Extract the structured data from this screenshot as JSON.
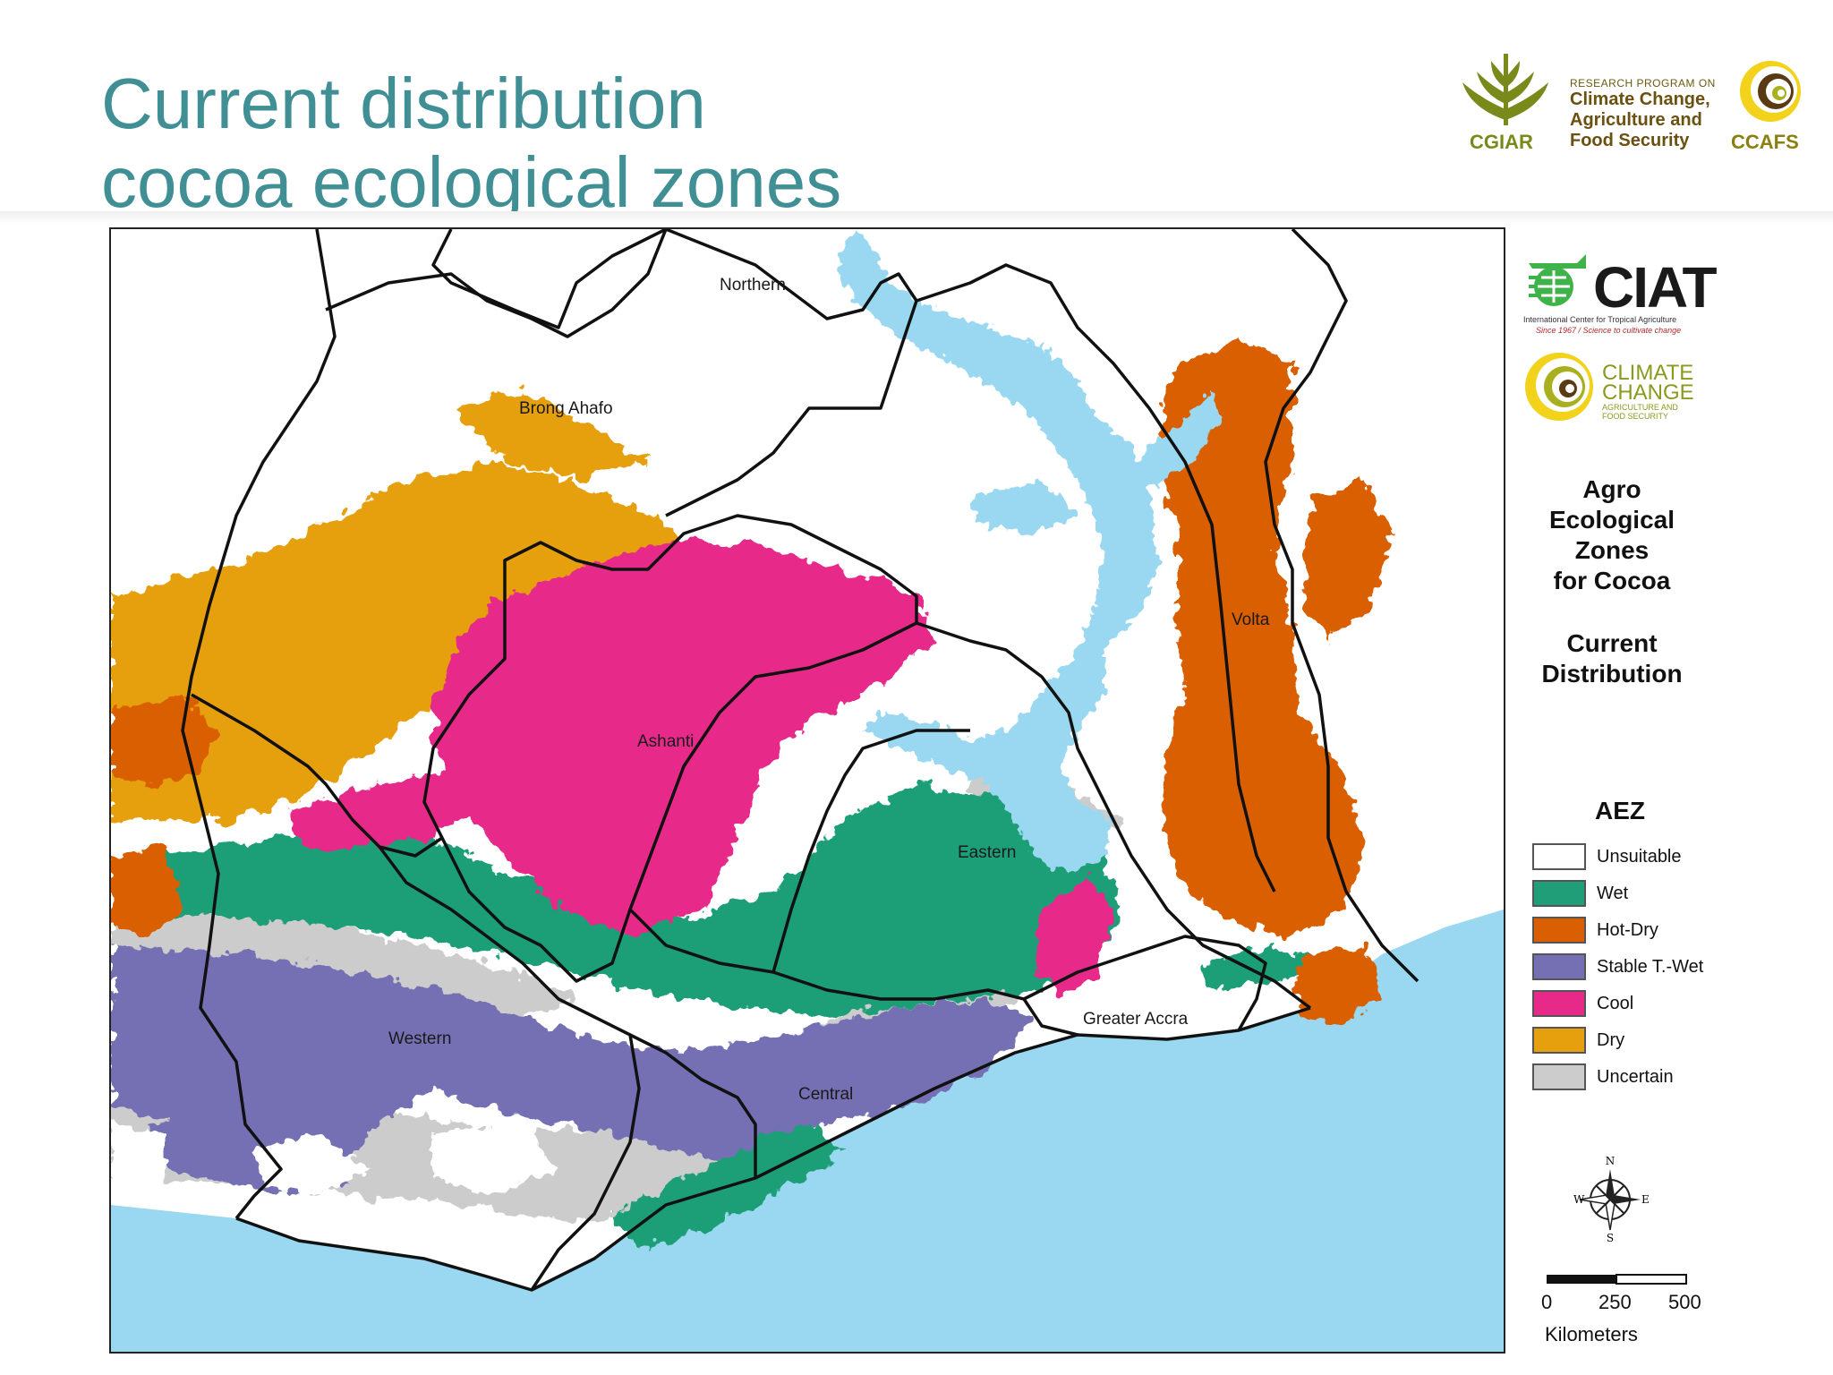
{
  "slide": {
    "title_line1": "Current distribution",
    "title_line2": "cocoa ecological zones"
  },
  "logos": {
    "cgiar": "CGIAR",
    "research_program_on": "RESEARCH PROGRAM ON",
    "program_line1": "Climate Change,",
    "program_line2": "Agriculture and",
    "program_line3": "Food Security",
    "ccafs": "CCAFS",
    "ciat": "CIAT",
    "ciat_sub1": "International Center for Tropical Agriculture",
    "ciat_sub2": "Since 1967 / Science to cultivate change",
    "cc_line1": "CLIMATE",
    "cc_line2": "CHANGE",
    "cc_line3": "AGRICULTURE AND",
    "cc_line4": "FOOD SECURITY"
  },
  "map": {
    "regions": {
      "northern": "Northern",
      "brong_ahafo": "Brong Ahafo",
      "ashanti": "Ashanti",
      "volta": "Volta",
      "eastern": "Eastern",
      "western": "Western",
      "central": "Central",
      "greater_accra": "Greater Accra"
    },
    "colors": {
      "unsuitable": "#ffffff",
      "wet": "#1f9e77",
      "hot_dry": "#d95f02",
      "stable_t_wet": "#7570b3",
      "cool": "#e7298a",
      "dry": "#e6a00e",
      "uncertain": "#cccccc",
      "water": "#99d8f0",
      "border": "#111111"
    }
  },
  "legend": {
    "title_line1": "Agro",
    "title_line2": "Ecological",
    "title_line3": "Zones",
    "title_line4": "for Cocoa",
    "subtitle_line1": "Current",
    "subtitle_line2": "Distribution",
    "aez_heading": "AEZ",
    "items": [
      {
        "label": "Unsuitable",
        "color": "#ffffff"
      },
      {
        "label": "Wet",
        "color": "#1f9e77"
      },
      {
        "label": "Hot-Dry",
        "color": "#d95f02"
      },
      {
        "label": "Stable T.-Wet",
        "color": "#7570b3"
      },
      {
        "label": "Cool",
        "color": "#e7298a"
      },
      {
        "label": "Dry",
        "color": "#e6a00e"
      },
      {
        "label": "Uncertain",
        "color": "#cccccc"
      }
    ],
    "compass": {
      "n": "N",
      "s": "S",
      "e": "E",
      "w": "W"
    },
    "scale": {
      "v0": "0",
      "v1": "250",
      "v2": "500",
      "unit": "Kilometers"
    }
  }
}
